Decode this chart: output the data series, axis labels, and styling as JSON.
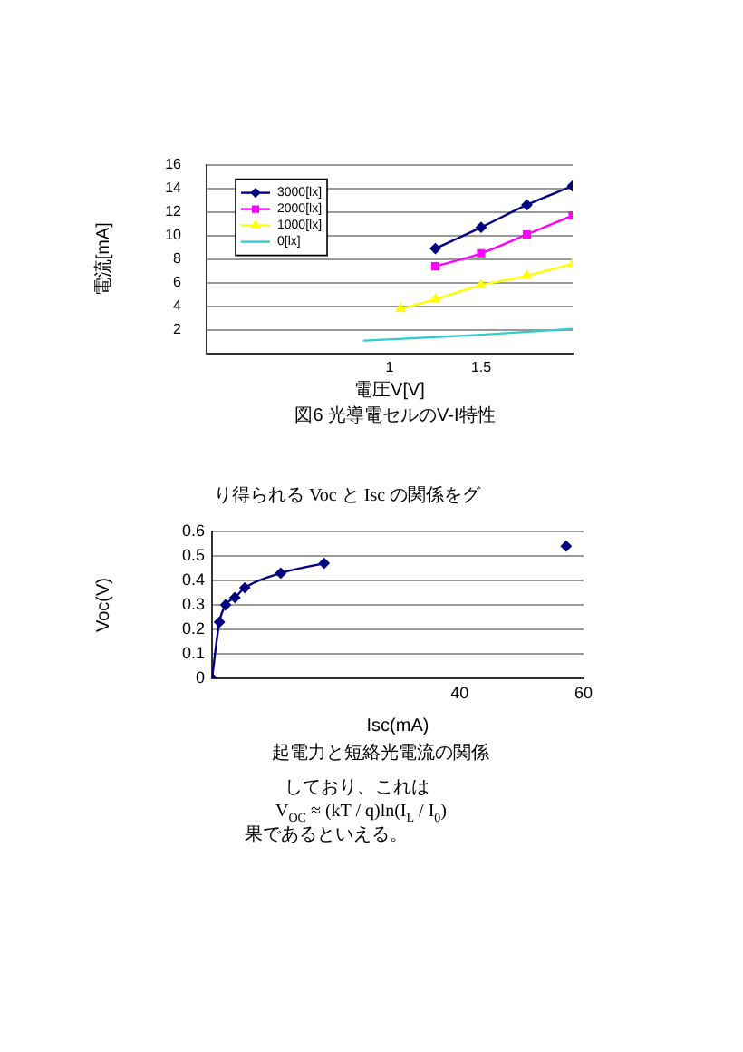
{
  "chart_data": [
    {
      "type": "line",
      "title": "図6 光導電セルのV-I特性",
      "xlabel": "電圧V[V]",
      "ylabel": "電流[mA]",
      "xlim": [
        0,
        2
      ],
      "xticks": [
        1,
        1.5
      ],
      "ylim": [
        0,
        16
      ],
      "yticks": [
        2,
        4,
        6,
        8,
        10,
        12,
        14,
        16
      ],
      "grid": "y",
      "legend": "top left",
      "series": [
        {
          "name": "3000[lx]",
          "color": "#000080",
          "marker": "diamond",
          "x": [
            1.25,
            1.5,
            1.75,
            2
          ],
          "values": [
            8.9,
            10.7,
            12.6,
            14.2
          ]
        },
        {
          "name": "2000[lx]",
          "color": "#ff00ff",
          "marker": "square",
          "x": [
            1.25,
            1.5,
            1.75,
            2
          ],
          "values": [
            7.4,
            8.5,
            10.1,
            11.7
          ]
        },
        {
          "name": "1000[lx]",
          "color": "#ffff00",
          "marker": "triangle",
          "x": [
            1.06,
            1.25,
            1.5,
            1.75,
            2
          ],
          "values": [
            3.8,
            4.6,
            5.8,
            6.6,
            7.6
          ]
        },
        {
          "name": "0[lx]",
          "color": "#33cccc",
          "marker": "none",
          "x": [
            0.86,
            1.5,
            2
          ],
          "values": [
            1.1,
            1.6,
            2.1
          ]
        }
      ]
    },
    {
      "type": "line",
      "title": "起電力と短絡光電流の関係",
      "xlabel": "Isc(mA)",
      "ylabel": "Voc(V)",
      "xlim": [
        0,
        60
      ],
      "xticks": [
        40,
        60
      ],
      "ylim": [
        0,
        0.6
      ],
      "yticks": [
        0,
        0.1,
        0.2,
        0.3,
        0.4,
        0.5,
        0.6
      ],
      "grid": "y",
      "marker": "diamond",
      "color": "#000080",
      "x": [
        0,
        1.2,
        2.2,
        3.7,
        5.3,
        11.1,
        18.1,
        40,
        57.2
      ],
      "values": [
        0,
        0.23,
        0.3,
        0.33,
        0.37,
        0.43,
        0.47,
        null,
        0.54
      ],
      "annotations": [
        "り得られる Voc と Isc の関係をグ",
        "しており、これは",
        "V$_{OC}$ ≈ (kT / q)ln(I$_{L}$ / I$_{0}$)",
        "果であるといえる。"
      ]
    }
  ]
}
